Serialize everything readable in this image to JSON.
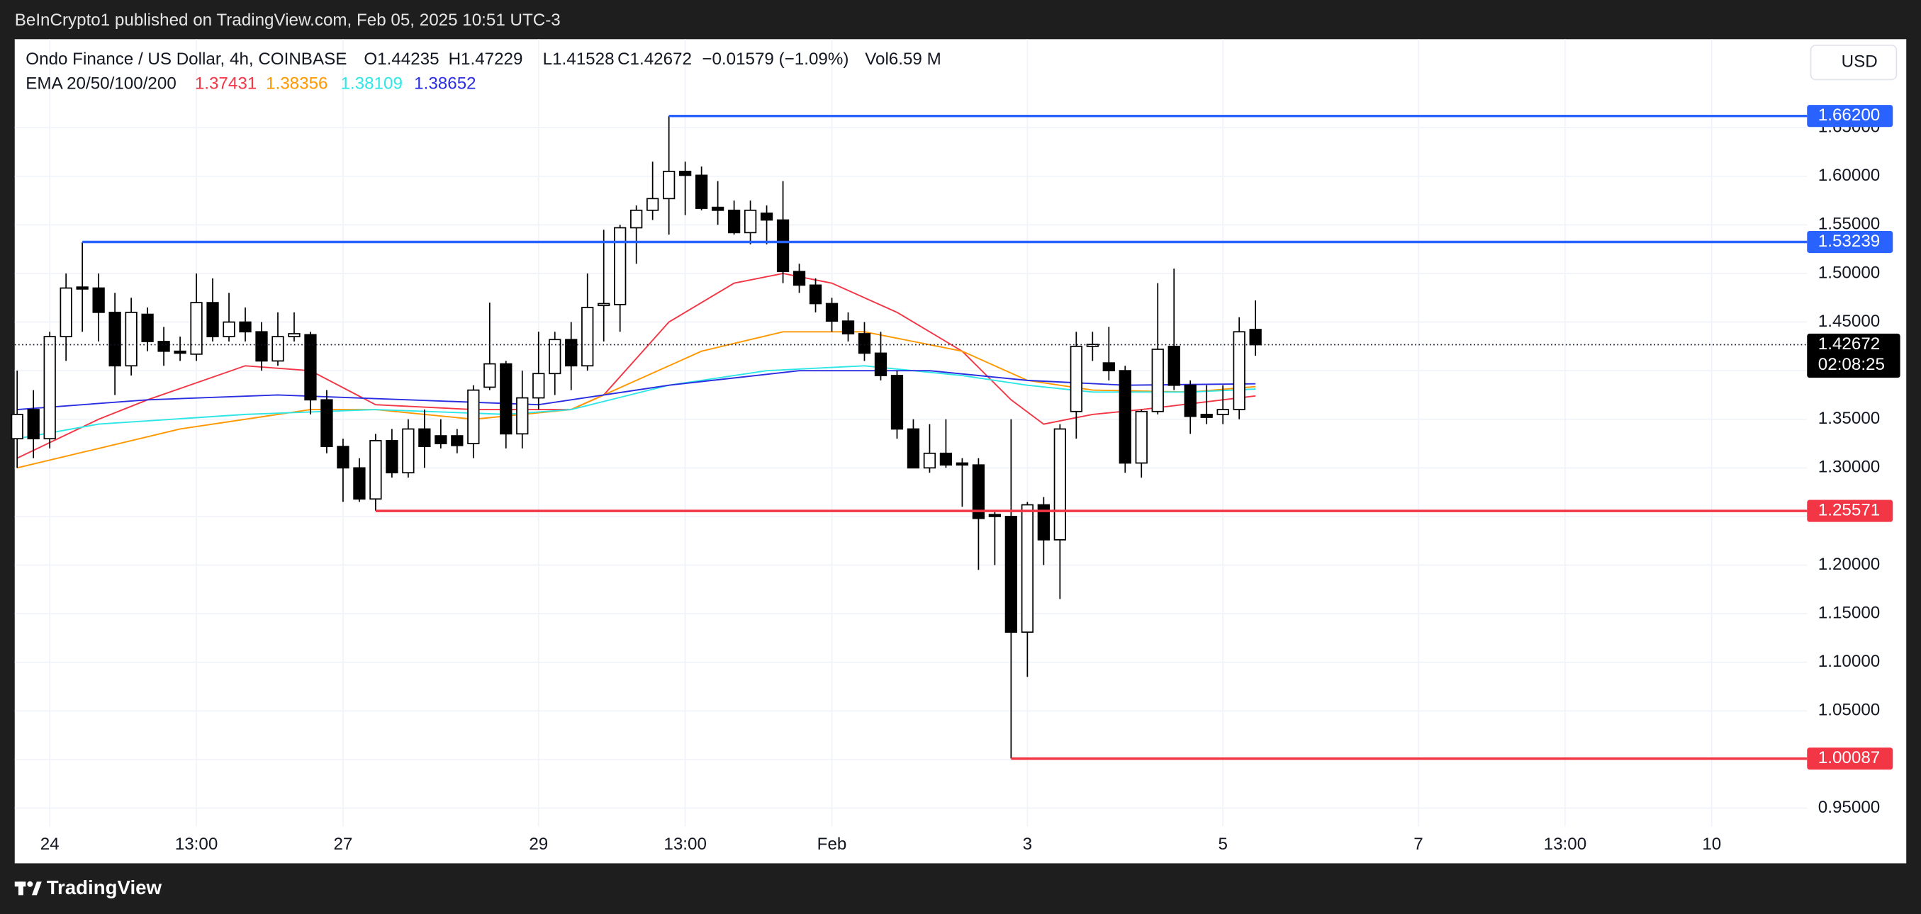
{
  "chart_data": {
    "type": "candlestick",
    "published": "BeInCrypto1 published on TradingView.com, Feb 05, 2025 10:51 UTC-3",
    "title": "Ondo Finance / US Dollar, 4h, COINBASE",
    "ohlc_legend": [
      "O1.44235",
      "H1.47229",
      "L1.41528",
      "C1.42672",
      "−0.01579 (−1.09%)",
      "Vol6.59 M"
    ],
    "ema_title": "EMA 20/50/100/200",
    "currency": "USD",
    "brand": "TradingView",
    "up_color": "#ffffff",
    "down_color": "#000000",
    "x": [
      0,
      1,
      2,
      3,
      4,
      5,
      6,
      7,
      8,
      9,
      10,
      11,
      12,
      13,
      14,
      15,
      16,
      17,
      18,
      19,
      20,
      21,
      22,
      23,
      24,
      25,
      26,
      27,
      28,
      29,
      30,
      31,
      32,
      33,
      34,
      35,
      36,
      37,
      38,
      39,
      40,
      41,
      42,
      43,
      44,
      45,
      46,
      47,
      48,
      49,
      50,
      51,
      52,
      53,
      54,
      55,
      56,
      57,
      58,
      59,
      60,
      61,
      62,
      63,
      64,
      65,
      66,
      67,
      68,
      69,
      70,
      71,
      72,
      73,
      74,
      75,
      76
    ],
    "open": [
      1.33,
      1.36,
      1.33,
      1.435,
      1.486,
      1.485,
      1.46,
      1.405,
      1.458,
      1.43,
      1.42,
      1.417,
      1.47,
      1.435,
      1.45,
      1.44,
      1.41,
      1.435,
      1.437,
      1.37,
      1.322,
      1.3,
      1.268,
      1.328,
      1.295,
      1.34,
      1.333,
      1.333,
      1.325,
      1.383,
      1.407,
      1.335,
      1.372,
      1.397,
      1.432,
      1.405,
      1.467,
      1.468,
      1.547,
      1.565,
      1.577,
      1.605,
      1.601,
      1.568,
      1.565,
      1.542,
      1.562,
      1.555,
      1.502,
      1.488,
      1.469,
      1.451,
      1.438,
      1.418,
      1.395,
      1.34,
      1.3,
      1.315,
      1.305,
      1.303,
      1.252,
      1.25,
      1.131,
      1.262,
      1.226,
      1.358,
      1.425,
      1.408,
      1.4,
      1.305,
      1.358,
      1.425,
      1.385,
      1.355,
      1.355,
      1.36,
      1.44235
    ],
    "high": [
      1.4,
      1.38,
      1.44,
      1.5,
      1.532,
      1.5,
      1.48,
      1.475,
      1.465,
      1.445,
      1.435,
      1.5,
      1.495,
      1.48,
      1.465,
      1.45,
      1.46,
      1.46,
      1.44,
      1.38,
      1.33,
      1.31,
      1.335,
      1.34,
      1.35,
      1.36,
      1.35,
      1.34,
      1.385,
      1.47,
      1.41,
      1.4,
      1.44,
      1.44,
      1.45,
      1.5,
      1.545,
      1.55,
      1.57,
      1.615,
      1.662,
      1.615,
      1.61,
      1.595,
      1.575,
      1.575,
      1.57,
      1.595,
      1.51,
      1.495,
      1.475,
      1.46,
      1.45,
      1.44,
      1.4,
      1.35,
      1.345,
      1.35,
      1.31,
      1.31,
      1.255,
      1.35,
      1.265,
      1.27,
      1.345,
      1.44,
      1.44,
      1.445,
      1.405,
      1.36,
      1.49,
      1.505,
      1.39,
      1.385,
      1.385,
      1.455,
      1.47229
    ],
    "low": [
      1.3,
      1.31,
      1.32,
      1.41,
      1.44,
      1.43,
      1.375,
      1.395,
      1.42,
      1.405,
      1.41,
      1.41,
      1.43,
      1.43,
      1.43,
      1.4,
      1.405,
      1.43,
      1.355,
      1.315,
      1.265,
      1.265,
      1.256,
      1.29,
      1.29,
      1.3,
      1.32,
      1.315,
      1.31,
      1.38,
      1.32,
      1.32,
      1.36,
      1.375,
      1.38,
      1.4,
      1.43,
      1.44,
      1.51,
      1.555,
      1.54,
      1.56,
      1.565,
      1.55,
      1.54,
      1.53,
      1.53,
      1.49,
      1.48,
      1.46,
      1.44,
      1.43,
      1.41,
      1.39,
      1.33,
      1.3,
      1.295,
      1.3,
      1.26,
      1.195,
      1.2,
      1.001,
      1.085,
      1.2,
      1.165,
      1.33,
      1.41,
      1.39,
      1.295,
      1.29,
      1.355,
      1.38,
      1.335,
      1.345,
      1.345,
      1.35,
      1.41528
    ],
    "close": [
      1.355,
      1.33,
      1.435,
      1.485,
      1.484,
      1.46,
      1.405,
      1.46,
      1.43,
      1.42,
      1.418,
      1.47,
      1.435,
      1.45,
      1.44,
      1.41,
      1.435,
      1.438,
      1.37,
      1.322,
      1.3,
      1.268,
      1.328,
      1.295,
      1.34,
      1.322,
      1.325,
      1.323,
      1.38,
      1.407,
      1.335,
      1.372,
      1.397,
      1.432,
      1.405,
      1.465,
      1.469,
      1.547,
      1.565,
      1.577,
      1.605,
      1.601,
      1.567,
      1.565,
      1.542,
      1.565,
      1.555,
      1.502,
      1.488,
      1.469,
      1.451,
      1.438,
      1.418,
      1.395,
      1.34,
      1.3,
      1.315,
      1.303,
      1.303,
      1.248,
      1.25,
      1.131,
      1.262,
      1.226,
      1.34,
      1.425,
      1.427,
      1.4,
      1.305,
      1.358,
      1.422,
      1.385,
      1.353,
      1.352,
      1.36,
      1.44,
      1.42672
    ],
    "series": [
      {
        "color": "#f23645",
        "last_label": "1.37431",
        "x": [
          0,
          5,
          8,
          14,
          18,
          22,
          28,
          34,
          36,
          40,
          44,
          47,
          50,
          54,
          58,
          61,
          63,
          66,
          69,
          72,
          76
        ],
        "values": [
          1.31,
          1.35,
          1.37,
          1.405,
          1.4,
          1.365,
          1.36,
          1.36,
          1.375,
          1.45,
          1.49,
          1.5,
          1.49,
          1.46,
          1.42,
          1.37,
          1.345,
          1.355,
          1.36,
          1.366,
          1.374
        ]
      },
      {
        "color": "#ff9800",
        "last_label": "1.38356",
        "x": [
          0,
          5,
          10,
          18,
          22,
          28,
          34,
          38,
          42,
          47,
          52,
          58,
          62,
          66,
          72,
          76
        ],
        "values": [
          1.3,
          1.32,
          1.34,
          1.36,
          1.36,
          1.35,
          1.36,
          1.39,
          1.42,
          1.44,
          1.44,
          1.42,
          1.39,
          1.38,
          1.378,
          1.38356
        ]
      },
      {
        "color": "#2ee6e6",
        "last_label": "1.38109",
        "x": [
          0,
          5,
          14,
          22,
          30,
          34,
          40,
          46,
          52,
          58,
          62,
          66,
          72,
          76
        ],
        "values": [
          1.33,
          1.345,
          1.355,
          1.36,
          1.355,
          1.36,
          1.385,
          1.4,
          1.405,
          1.395,
          1.385,
          1.378,
          1.378,
          1.38109
        ]
      },
      {
        "color": "#2a2ee0",
        "last_label": "1.38652",
        "x": [
          0,
          8,
          16,
          24,
          32,
          40,
          48,
          56,
          62,
          68,
          76
        ],
        "values": [
          1.36,
          1.37,
          1.375,
          1.37,
          1.365,
          1.385,
          1.4,
          1.4,
          1.39,
          1.385,
          1.38652
        ]
      }
    ],
    "levels": [
      {
        "value": 1.662,
        "label": "1.66200",
        "color": "#2962ff",
        "start": 40
      },
      {
        "value": 1.53239,
        "label": "1.53239",
        "color": "#2962ff",
        "start": 4
      },
      {
        "value": 1.25571,
        "label": "1.25571",
        "color": "#f23645",
        "start": 22
      },
      {
        "value": 1.00087,
        "label": "1.00087",
        "color": "#f23645",
        "start": 61
      }
    ],
    "last_price": {
      "value": 1.42672,
      "label": "1.42672",
      "countdown": "02:08:25"
    },
    "xlim": [
      -0.15,
      109.85
    ],
    "ylim": [
      0.931,
      1.741
    ],
    "xticks": [
      {
        "value": 2,
        "label": "24"
      },
      {
        "value": 11,
        "label": "13:00"
      },
      {
        "value": 20,
        "label": "27"
      },
      {
        "value": 32,
        "label": "29"
      },
      {
        "value": 41,
        "label": "13:00"
      },
      {
        "value": 50,
        "label": "Feb"
      },
      {
        "value": 62,
        "label": "3"
      },
      {
        "value": 74,
        "label": "5"
      },
      {
        "value": 86,
        "label": "7"
      },
      {
        "value": 95,
        "label": "13:00"
      },
      {
        "value": 104,
        "label": "10"
      }
    ],
    "yticks": [
      {
        "value": 0.95,
        "label": "0.95000"
      },
      {
        "value": 1.0,
        "label": "1.00000"
      },
      {
        "value": 1.05,
        "label": "1.05000"
      },
      {
        "value": 1.1,
        "label": "1.10000"
      },
      {
        "value": 1.15,
        "label": "1.15000"
      },
      {
        "value": 1.2,
        "label": "1.20000"
      },
      {
        "value": 1.25,
        "label": "1.25000"
      },
      {
        "value": 1.3,
        "label": "1.30000"
      },
      {
        "value": 1.35,
        "label": "1.35000"
      },
      {
        "value": 1.4,
        "label": "1.40000"
      },
      {
        "value": 1.45,
        "label": "1.45000"
      },
      {
        "value": 1.5,
        "label": "1.50000"
      },
      {
        "value": 1.55,
        "label": "1.55000"
      },
      {
        "value": 1.6,
        "label": "1.60000"
      },
      {
        "value": 1.65,
        "label": "1.65000"
      }
    ],
    "grid": true
  }
}
